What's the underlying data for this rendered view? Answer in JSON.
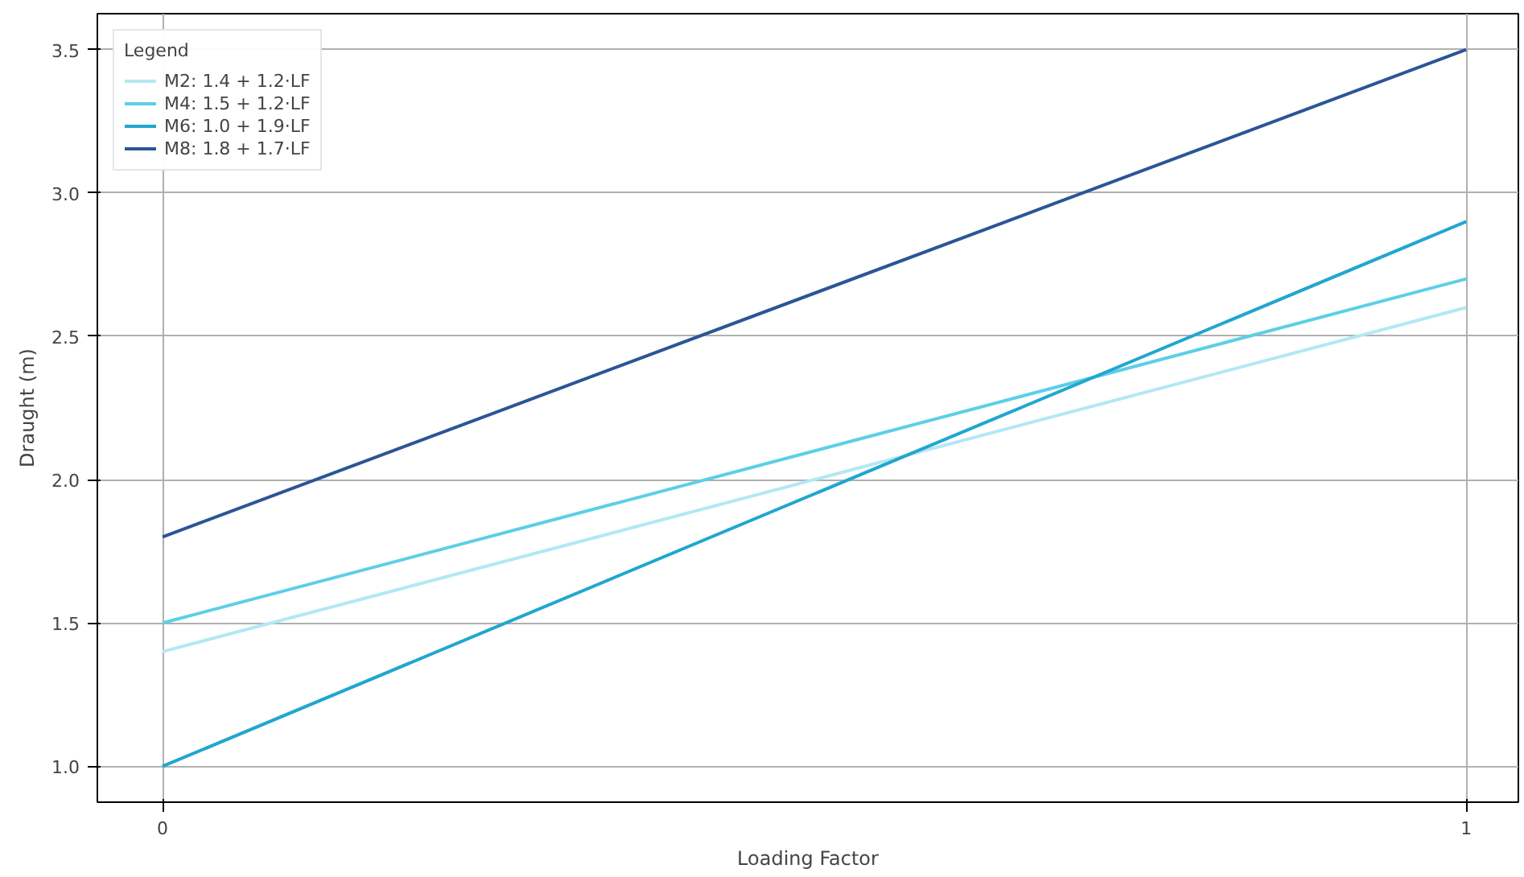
{
  "chart_data": {
    "type": "line",
    "xlabel": "Loading Factor",
    "ylabel": "Draught (m)",
    "legend_title": "Legend",
    "x": [
      0,
      1
    ],
    "series": [
      {
        "name": "M2: 1.4 + 1.2·LF",
        "color": "#b3e8f3",
        "values": [
          1.4,
          2.6
        ]
      },
      {
        "name": "M4: 1.5 + 1.2·LF",
        "color": "#5ccfe6",
        "values": [
          1.5,
          2.7
        ]
      },
      {
        "name": "M6: 1.0 + 1.9·LF",
        "color": "#21a6d0",
        "values": [
          1.0,
          2.9
        ]
      },
      {
        "name": "M8: 1.8 + 1.7·LF",
        "color": "#2b5597",
        "values": [
          1.8,
          3.5
        ]
      }
    ],
    "xlim": [
      -0.05,
      1.04
    ],
    "ylim": [
      0.875,
      3.625
    ],
    "xticks": [
      0,
      1
    ],
    "yticks": [
      {
        "value": 1,
        "label": "1.0"
      },
      {
        "value": 1.5,
        "label": "1.5"
      },
      {
        "value": 2,
        "label": "2.0"
      },
      {
        "value": 2.5,
        "label": "2.5"
      },
      {
        "value": 3,
        "label": "3.0"
      },
      {
        "value": 3.5,
        "label": "3.5"
      }
    ],
    "grid": true,
    "legend": "top left",
    "marker": "none",
    "line_style": "solid"
  }
}
